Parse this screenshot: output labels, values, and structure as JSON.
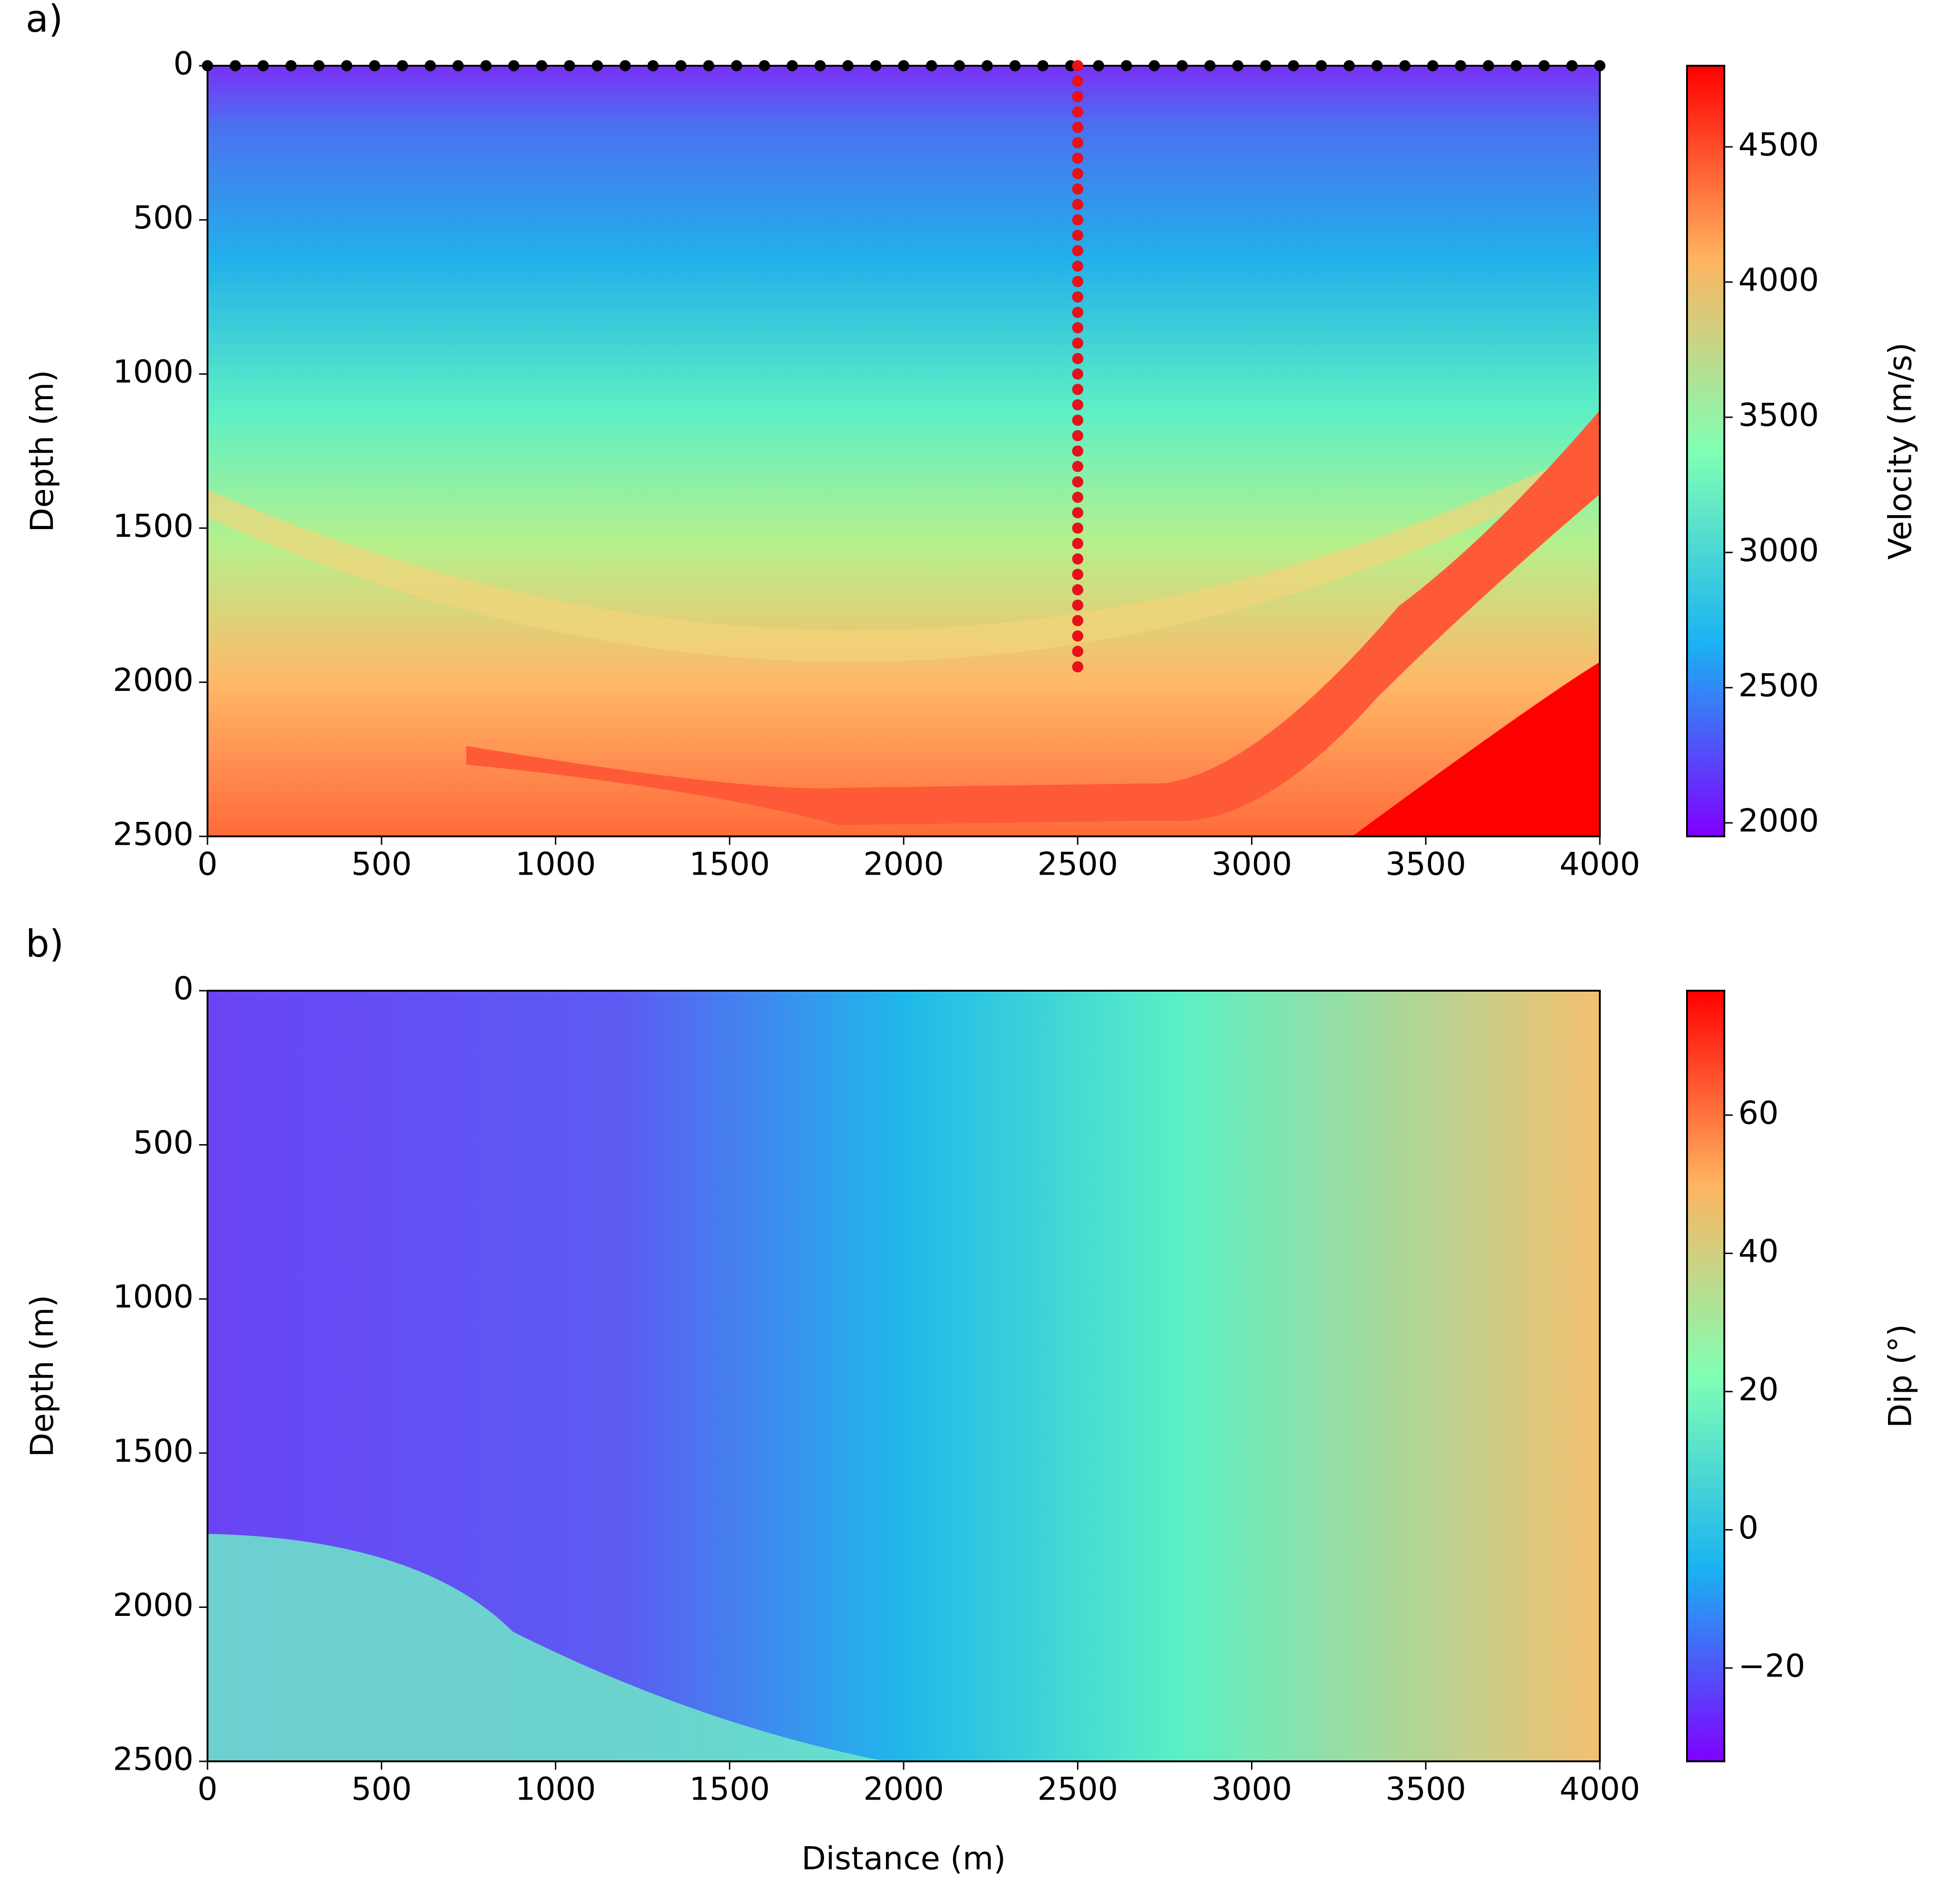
{
  "chart_data": [
    {
      "type": "heatmap",
      "panel_label": "a)",
      "ylabel": "Depth (m)",
      "xlim": [
        0,
        4000
      ],
      "ylim": [
        2500,
        0
      ],
      "xticks": [
        0,
        500,
        1000,
        1500,
        2000,
        2500,
        3000,
        3500,
        4000
      ],
      "yticks": [
        0,
        500,
        1000,
        1500,
        2000,
        2500
      ],
      "colorbar": {
        "label": "Velocity (m/s)",
        "lim": [
          1950,
          4800
        ],
        "ticks": [
          2000,
          2500,
          3000,
          3500,
          4000,
          4500
        ],
        "colormap": "rainbow"
      },
      "series": [
        {
          "color": "#000000",
          "x": [
            0,
            80,
            160,
            240,
            320,
            400,
            480,
            560,
            640,
            720,
            800,
            880,
            960,
            1040,
            1120,
            1200,
            1280,
            1360,
            1440,
            1520,
            1600,
            1680,
            1760,
            1840,
            1920,
            2000,
            2080,
            2160,
            2240,
            2320,
            2400,
            2480,
            2560,
            2640,
            2720,
            2800,
            2880,
            2960,
            3040,
            3120,
            3200,
            3280,
            3360,
            3440,
            3520,
            3600,
            3680,
            3760,
            3840,
            3920,
            4000
          ],
          "y": [
            0,
            0,
            0,
            0,
            0,
            0,
            0,
            0,
            0,
            0,
            0,
            0,
            0,
            0,
            0,
            0,
            0,
            0,
            0,
            0,
            0,
            0,
            0,
            0,
            0,
            0,
            0,
            0,
            0,
            0,
            0,
            0,
            0,
            0,
            0,
            0,
            0,
            0,
            0,
            0,
            0,
            0,
            0,
            0,
            0,
            0,
            0,
            0,
            0,
            0,
            0
          ]
        },
        {
          "color": "#e8101a",
          "x": [
            2500,
            2500,
            2500,
            2500,
            2500,
            2500,
            2500,
            2500,
            2500,
            2500,
            2500,
            2500,
            2500,
            2500,
            2500,
            2500,
            2500,
            2500,
            2500,
            2500,
            2500,
            2500,
            2500,
            2500,
            2500,
            2500,
            2500,
            2500,
            2500,
            2500,
            2500,
            2500,
            2500,
            2500,
            2500,
            2500,
            2500,
            2500,
            2500,
            2500
          ],
          "y": [
            0,
            50,
            100,
            150,
            200,
            250,
            300,
            350,
            400,
            450,
            500,
            550,
            600,
            650,
            700,
            750,
            800,
            850,
            900,
            950,
            1000,
            1050,
            1100,
            1150,
            1200,
            1250,
            1300,
            1350,
            1400,
            1450,
            1500,
            1550,
            1600,
            1650,
            1700,
            1750,
            1800,
            1850,
            1900,
            1950
          ]
        }
      ]
    },
    {
      "type": "heatmap",
      "panel_label": "b)",
      "xlabel": "Distance (m)",
      "ylabel": "Depth (m)",
      "xlim": [
        0,
        4000
      ],
      "ylim": [
        2500,
        0
      ],
      "xticks": [
        0,
        500,
        1000,
        1500,
        2000,
        2500,
        3000,
        3500,
        4000
      ],
      "yticks": [
        0,
        500,
        1000,
        1500,
        2000,
        2500
      ],
      "colorbar": {
        "label": "Dip (°)",
        "lim": [
          -33.5,
          78
        ],
        "ticks": [
          {
            "value": -20,
            "label": "−20"
          },
          0,
          20,
          40,
          60
        ],
        "colormap": "rainbow"
      },
      "series": []
    }
  ]
}
